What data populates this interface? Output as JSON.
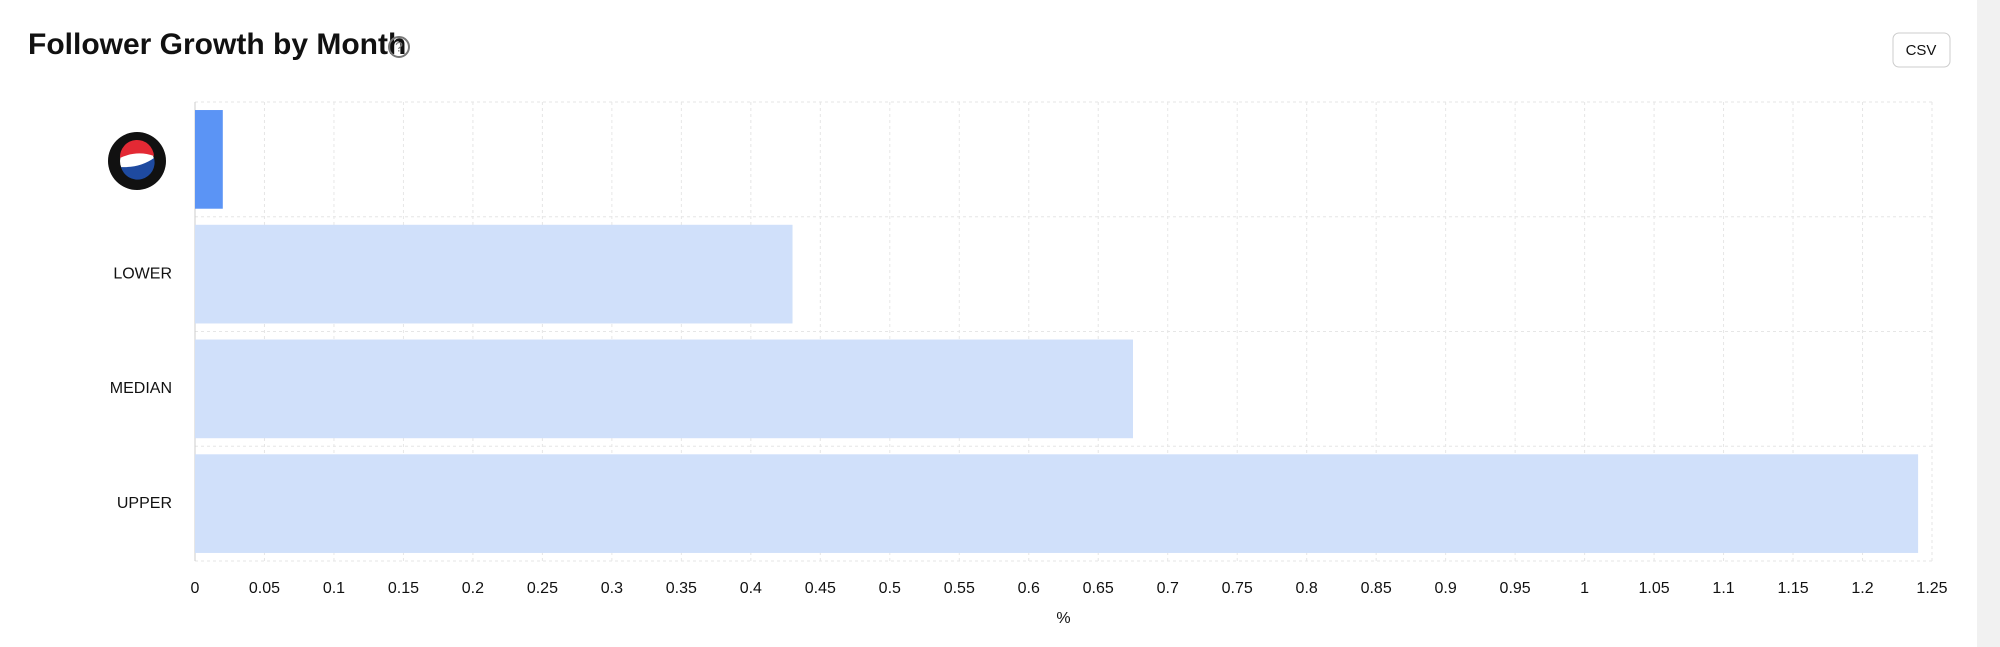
{
  "chart_data": {
    "type": "hbar",
    "title": "Follower Growth by Month",
    "button": "CSV",
    "categories": [
      null,
      "LOWER",
      "MEDIAN",
      "UPPER"
    ],
    "values": [
      0.02,
      0.43,
      0.675,
      1.24
    ],
    "colors": [
      "#5b94f5",
      "#d0e0fa",
      "#d0e0fa",
      "#d0e0fa"
    ],
    "xlabel": "%",
    "xlim": [
      0,
      1.25
    ],
    "xticks": [
      0,
      0.05,
      0.1,
      0.15,
      0.2,
      0.25,
      0.3,
      0.35,
      0.4,
      0.45,
      0.5,
      0.55,
      0.6,
      0.65,
      0.7,
      0.75,
      0.8,
      0.85,
      0.9,
      0.95,
      1,
      1.05,
      1.1,
      1.15,
      1.2,
      1.25
    ],
    "grid": true
  }
}
